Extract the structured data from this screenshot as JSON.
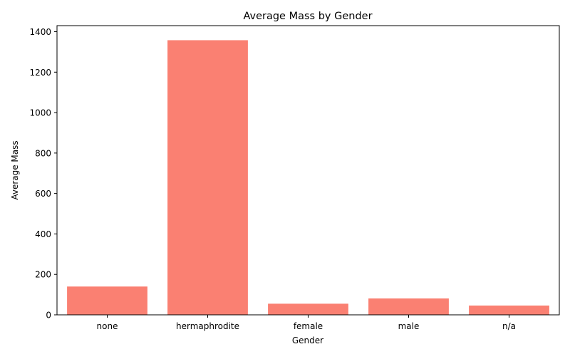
{
  "chart_data": {
    "type": "bar",
    "title": "Average Mass by Gender",
    "xlabel": "Gender",
    "ylabel": "Average Mass",
    "categories": [
      "none",
      "hermaphrodite",
      "female",
      "male",
      "n/a"
    ],
    "values": [
      140,
      1358,
      55,
      81,
      46
    ],
    "ylim": [
      0,
      1430
    ],
    "yticks": [
      0,
      200,
      400,
      600,
      800,
      1000,
      1200,
      1400
    ],
    "grid": false,
    "legend": "none",
    "bar_color": "#fa8072"
  }
}
